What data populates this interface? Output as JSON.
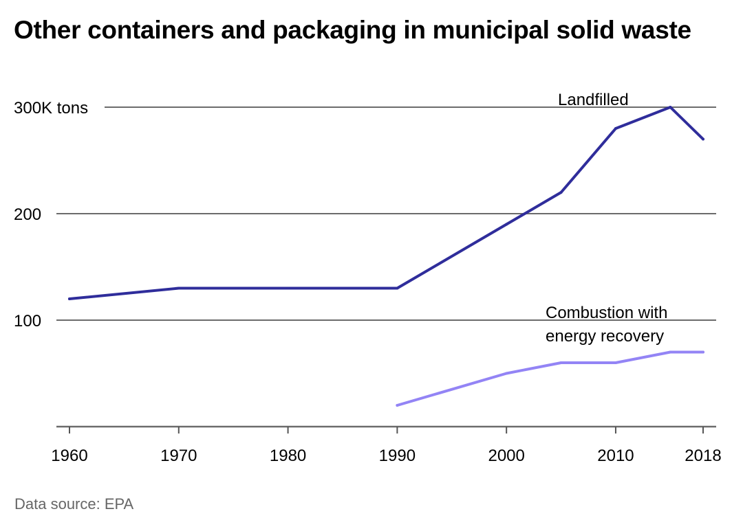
{
  "title": "Other containers and packaging in municipal solid waste",
  "source": "Data source: EPA",
  "chart_data": {
    "type": "line",
    "title": "Other containers and packaging in municipal solid waste",
    "xlabel": "",
    "ylabel": "tons",
    "unit_suffix": "K tons",
    "x": [
      1960,
      1970,
      1980,
      1990,
      2000,
      2005,
      2010,
      2015,
      2018
    ],
    "xlim": [
      1960,
      2018
    ],
    "ylim": [
      0,
      300
    ],
    "xticks": [
      1960,
      1970,
      1980,
      1990,
      2000,
      2010,
      2018
    ],
    "yticks": [
      100,
      200,
      300
    ],
    "ytick_labels": [
      "100",
      "200",
      "300K tons"
    ],
    "grid": "horizontal",
    "legend": "direct-labels",
    "series": [
      {
        "name": "Landfilled",
        "label_lines": [
          "Landfilled"
        ],
        "color": "#2f2d9b",
        "x": [
          1960,
          1970,
          1980,
          1990,
          2000,
          2005,
          2010,
          2015,
          2018
        ],
        "values": [
          120,
          130,
          130,
          130,
          190,
          220,
          280,
          300,
          270
        ]
      },
      {
        "name": "Combustion with energy recovery",
        "label_lines": [
          "Combustion with",
          "energy recovery"
        ],
        "color": "#9384f5",
        "x": [
          1990,
          2000,
          2005,
          2010,
          2015,
          2018
        ],
        "values": [
          20,
          50,
          60,
          60,
          70,
          70
        ]
      }
    ]
  }
}
